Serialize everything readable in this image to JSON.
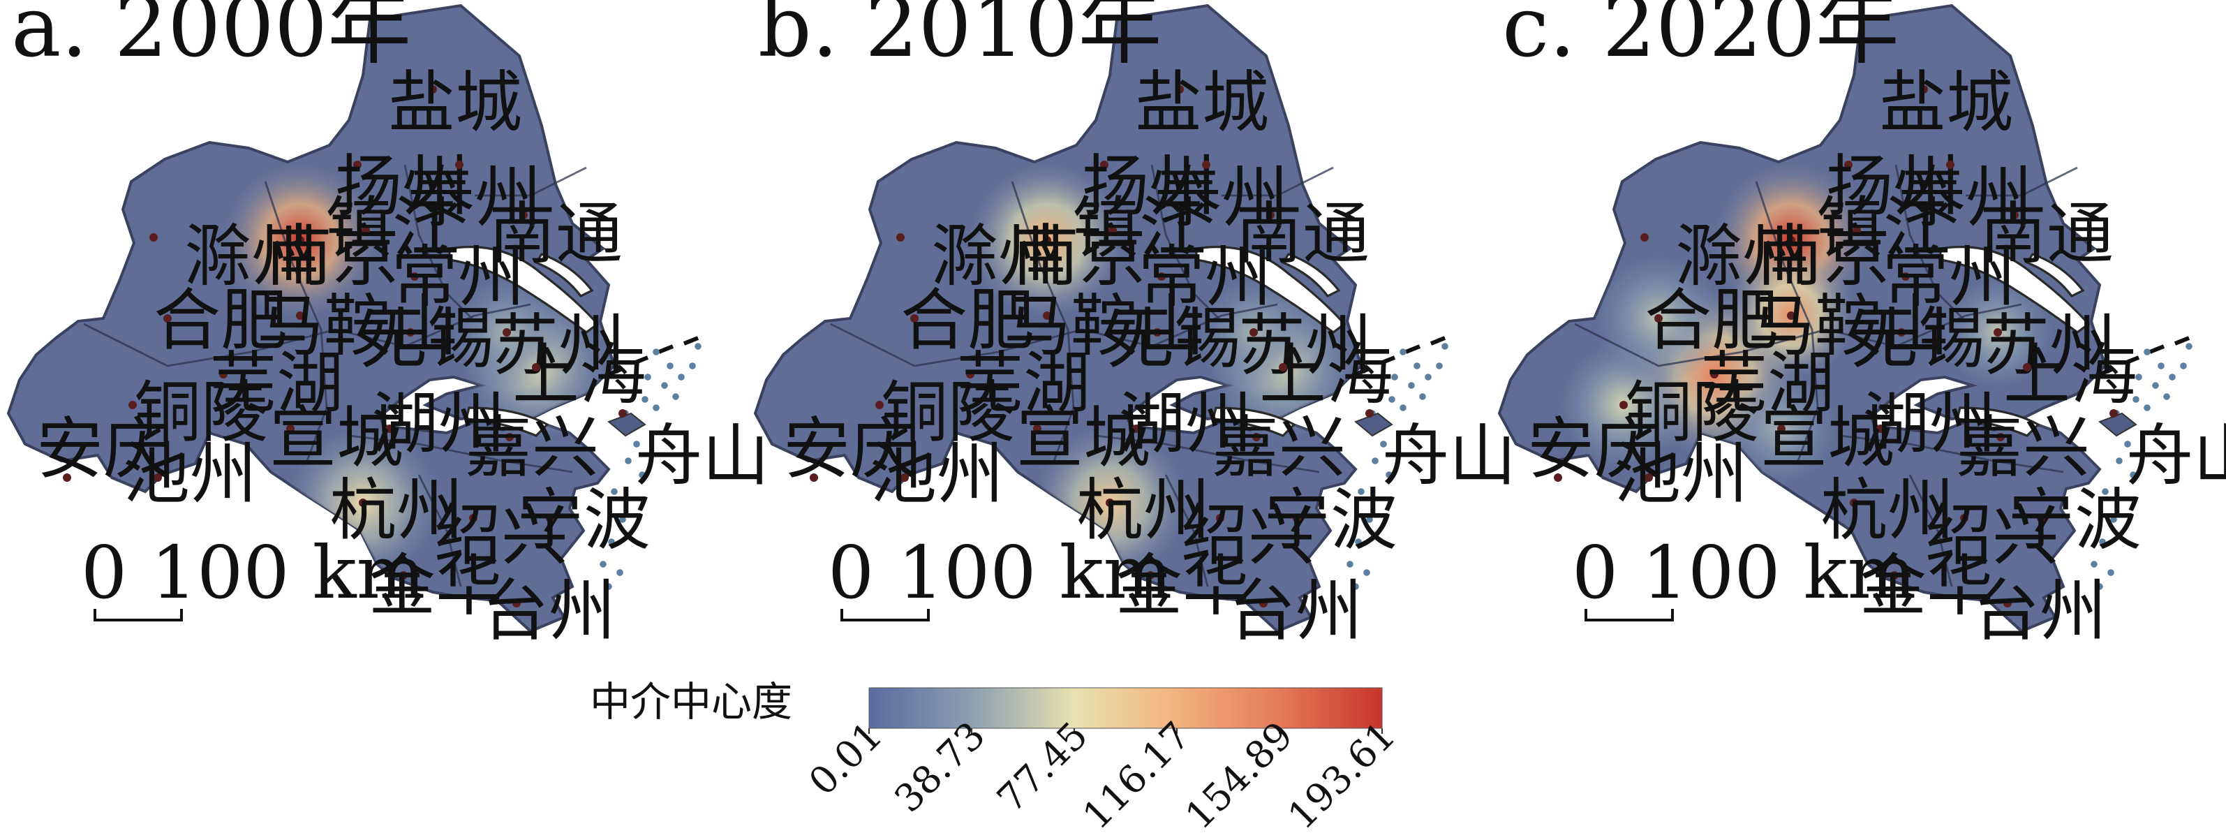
{
  "colors": {
    "region_fill": "#5f6d97",
    "region_stroke": "#3a4260",
    "water": "#ffffff",
    "gradient": [
      "#5a6ba0",
      "#8c9fb0",
      "#e8e2b0",
      "#f3b27c",
      "#e57a58",
      "#c8352c"
    ]
  },
  "panels": [
    {
      "title": "a. 2000年",
      "hotspots": [
        {
          "city": "南京",
          "value": 193.61
        },
        {
          "city": "上海",
          "value": 75
        },
        {
          "city": "杭州",
          "value": 85
        },
        {
          "city": "苏州",
          "value": 50
        }
      ]
    },
    {
      "title": "b. 2010年",
      "hotspots": [
        {
          "city": "南京",
          "value": 120
        },
        {
          "city": "杭州",
          "value": 100
        },
        {
          "city": "上海",
          "value": 70
        },
        {
          "city": "苏州",
          "value": 50
        }
      ]
    },
    {
      "title": "c. 2020年",
      "hotspots": [
        {
          "city": "南京",
          "value": 193.61
        },
        {
          "city": "芜湖",
          "value": 150
        },
        {
          "city": "马鞍山",
          "value": 140
        },
        {
          "city": "铜陵",
          "value": 70
        },
        {
          "city": "合肥",
          "value": 60
        },
        {
          "city": "苏州",
          "value": 60
        },
        {
          "city": "宣城",
          "value": 50
        }
      ]
    }
  ],
  "cities": [
    "盐城",
    "扬州",
    "泰州",
    "南通",
    "滁州",
    "南京",
    "镇江",
    "常州",
    "合肥",
    "马鞍山",
    "无锡",
    "苏州",
    "上海",
    "芜湖",
    "铜陵",
    "宣城",
    "湖州",
    "嘉兴",
    "安庆",
    "池州",
    "杭州",
    "舟山",
    "绍兴",
    "宁波",
    "金华",
    "台州"
  ],
  "scale_bar": {
    "zero": "0",
    "distance": "100 km"
  },
  "legend": {
    "title": "中介中心度",
    "min": 0.01,
    "max": 193.61,
    "ticks": [
      "0.01",
      "38.73",
      "77.45",
      "116.17",
      "154.89",
      "193.61"
    ]
  }
}
